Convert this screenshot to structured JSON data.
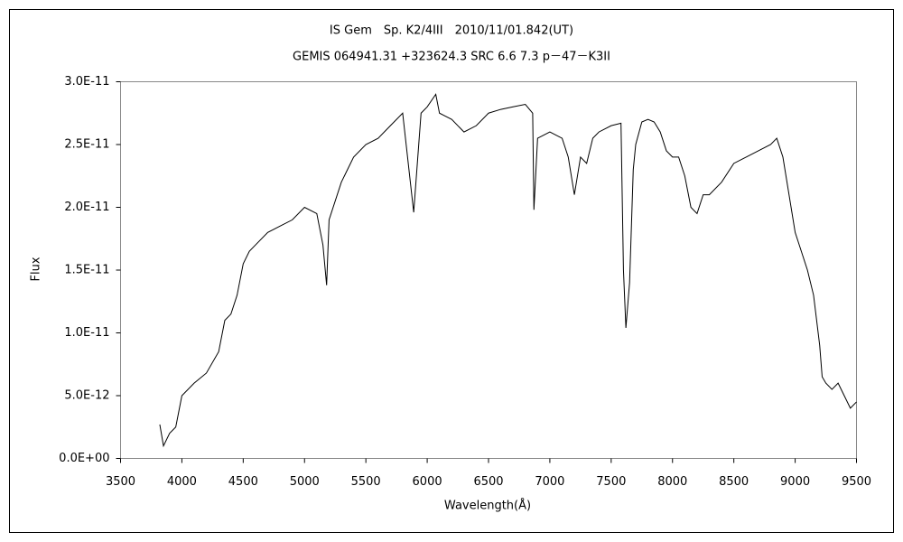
{
  "chart_data": {
    "type": "line",
    "title": "IS Gem　Sp. K2/4III　2010/11/01.842(UT)",
    "subtitle": "GEMIS 064941.31 +323624.3 SRC 6.6 7.3 p－47－K3II",
    "xlabel": "Wavelength(Å)",
    "ylabel": "Flux",
    "xlim": [
      3500,
      9500
    ],
    "xticks": [
      3500,
      4000,
      4500,
      5000,
      5500,
      6000,
      6500,
      7000,
      7500,
      8000,
      8500,
      9000,
      9500
    ],
    "ylim": [
      0,
      3e-11
    ],
    "yticks": [
      {
        "value": 0,
        "label": "0.0E+00"
      },
      {
        "value": 5e-12,
        "label": "5.0E-12"
      },
      {
        "value": 1e-11,
        "label": "1.0E-11"
      },
      {
        "value": 1.5e-11,
        "label": "1.5E-11"
      },
      {
        "value": 2e-11,
        "label": "2.0E-11"
      },
      {
        "value": 2.5e-11,
        "label": "2.5E-11"
      },
      {
        "value": 3e-11,
        "label": "3.0E-11"
      }
    ],
    "grid": false,
    "series": [
      {
        "color": "#000000",
        "x": [
          3820,
          3850,
          3900,
          3950,
          4000,
          4100,
          4200,
          4300,
          4350,
          4400,
          4450,
          4500,
          4550,
          4600,
          4700,
          4800,
          4900,
          5000,
          5100,
          5150,
          5180,
          5200,
          5300,
          5400,
          5500,
          5600,
          5700,
          5800,
          5890,
          5950,
          6000,
          6070,
          6100,
          6200,
          6300,
          6400,
          6500,
          6600,
          6700,
          6800,
          6860,
          6870,
          6900,
          7000,
          7100,
          7150,
          7200,
          7250,
          7300,
          7350,
          7400,
          7500,
          7580,
          7600,
          7620,
          7650,
          7680,
          7700,
          7750,
          7800,
          7850,
          7900,
          7950,
          8000,
          8050,
          8100,
          8150,
          8200,
          8250,
          8300,
          8400,
          8500,
          8600,
          8700,
          8800,
          8850,
          8900,
          8950,
          9000,
          9050,
          9100,
          9150,
          9200,
          9220,
          9250,
          9300,
          9350,
          9400,
          9450,
          9500
        ],
        "values": [
          2.7e-12,
          1e-12,
          2e-12,
          2.5e-12,
          5e-12,
          6e-12,
          6.8e-12,
          8.5e-12,
          1.1e-11,
          1.15e-11,
          1.3e-11,
          1.55e-11,
          1.65e-11,
          1.7e-11,
          1.8e-11,
          1.85e-11,
          1.9e-11,
          2e-11,
          1.95e-11,
          1.7e-11,
          1.38e-11,
          1.9e-11,
          2.2e-11,
          2.4e-11,
          2.5e-11,
          2.55e-11,
          2.65e-11,
          2.75e-11,
          1.96e-11,
          2.75e-11,
          2.8e-11,
          2.9e-11,
          2.75e-11,
          2.7e-11,
          2.6e-11,
          2.65e-11,
          2.75e-11,
          2.78e-11,
          2.8e-11,
          2.82e-11,
          2.75e-11,
          1.98e-11,
          2.55e-11,
          2.6e-11,
          2.55e-11,
          2.4e-11,
          2.1e-11,
          2.4e-11,
          2.35e-11,
          2.55e-11,
          2.6e-11,
          2.65e-11,
          2.67e-11,
          1.5e-11,
          1.04e-11,
          1.4e-11,
          2.3e-11,
          2.5e-11,
          2.68e-11,
          2.7e-11,
          2.68e-11,
          2.6e-11,
          2.45e-11,
          2.4e-11,
          2.4e-11,
          2.25e-11,
          2e-11,
          1.95e-11,
          2.1e-11,
          2.1e-11,
          2.2e-11,
          2.35e-11,
          2.4e-11,
          2.45e-11,
          2.5e-11,
          2.55e-11,
          2.4e-11,
          2.1e-11,
          1.8e-11,
          1.65e-11,
          1.5e-11,
          1.3e-11,
          9e-12,
          6.5e-12,
          6e-12,
          5.5e-12,
          6e-12,
          5e-12,
          4e-12,
          4.5e-12
        ]
      }
    ]
  }
}
